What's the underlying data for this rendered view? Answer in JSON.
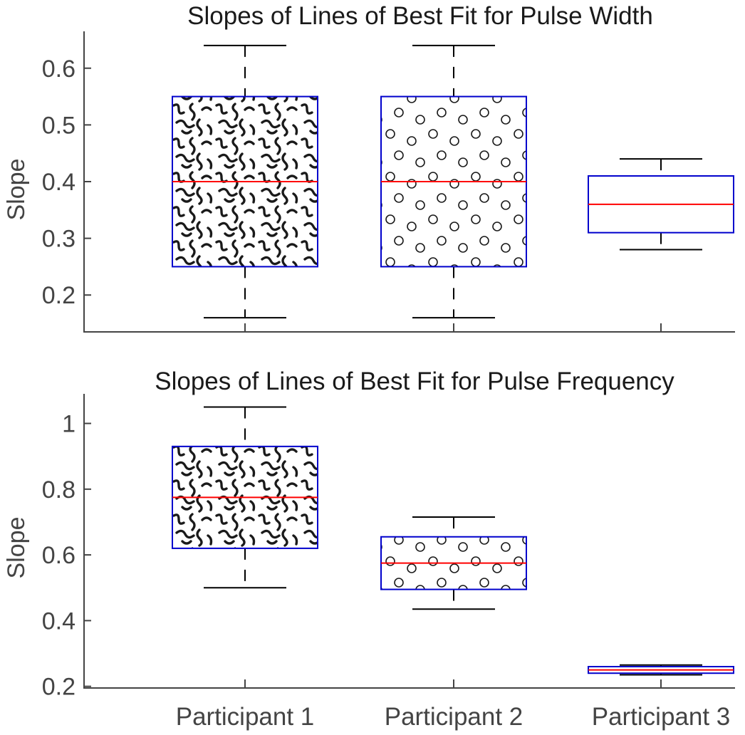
{
  "chart_data": [
    {
      "type": "box",
      "title": "Slopes of Lines of Best Fit for Pulse Width",
      "ylabel": "Slope",
      "xlabel": "",
      "categories": [
        "Participant 1",
        "Participant 2",
        "Participant 3"
      ],
      "show_xtick_labels": false,
      "ylim": [
        0.135,
        0.665
      ],
      "yticks": [
        0.2,
        0.3,
        0.4,
        0.5,
        0.6
      ],
      "ytick_labels": [
        "0.2",
        "0.3",
        "0.4",
        "0.5",
        "0.6"
      ],
      "boxes": [
        {
          "category": "Participant 1",
          "whisker_low": 0.16,
          "q1": 0.25,
          "median": 0.4,
          "q3": 0.55,
          "whisker_high": 0.64,
          "pattern": "squiggle"
        },
        {
          "category": "Participant 2",
          "whisker_low": 0.16,
          "q1": 0.25,
          "median": 0.4,
          "q3": 0.55,
          "whisker_high": 0.64,
          "pattern": "circles"
        },
        {
          "category": "Participant 3",
          "whisker_low": 0.28,
          "q1": 0.31,
          "median": 0.36,
          "q3": 0.41,
          "whisker_high": 0.44,
          "pattern": "none"
        }
      ],
      "colors": {
        "box": "#0000cc",
        "median": "#ff0000",
        "whisker": "#000000",
        "pattern": "#1a1a1a"
      },
      "grid": false,
      "legend": "none"
    },
    {
      "type": "box",
      "title": "Slopes of Lines of Best Fit for Pulse Frequency",
      "ylabel": "Slope",
      "xlabel": "",
      "categories": [
        "Participant 1",
        "Participant 2",
        "Participant 3"
      ],
      "show_xtick_labels": true,
      "ylim": [
        0.195,
        1.09
      ],
      "yticks": [
        0.2,
        0.4,
        0.6,
        0.8,
        1.0
      ],
      "ytick_labels": [
        "0.2",
        "0.4",
        "0.6",
        "0.8",
        "1"
      ],
      "boxes": [
        {
          "category": "Participant 1",
          "whisker_low": 0.5,
          "q1": 0.62,
          "median": 0.775,
          "q3": 0.93,
          "whisker_high": 1.05,
          "pattern": "squiggle"
        },
        {
          "category": "Participant 2",
          "whisker_low": 0.435,
          "q1": 0.495,
          "median": 0.575,
          "q3": 0.655,
          "whisker_high": 0.715,
          "pattern": "circles"
        },
        {
          "category": "Participant 3",
          "whisker_low": 0.235,
          "q1": 0.24,
          "median": 0.25,
          "q3": 0.26,
          "whisker_high": 0.265,
          "pattern": "none"
        }
      ],
      "colors": {
        "box": "#0000cc",
        "median": "#ff0000",
        "whisker": "#000000",
        "pattern": "#1a1a1a"
      },
      "grid": false,
      "legend": "none"
    }
  ]
}
